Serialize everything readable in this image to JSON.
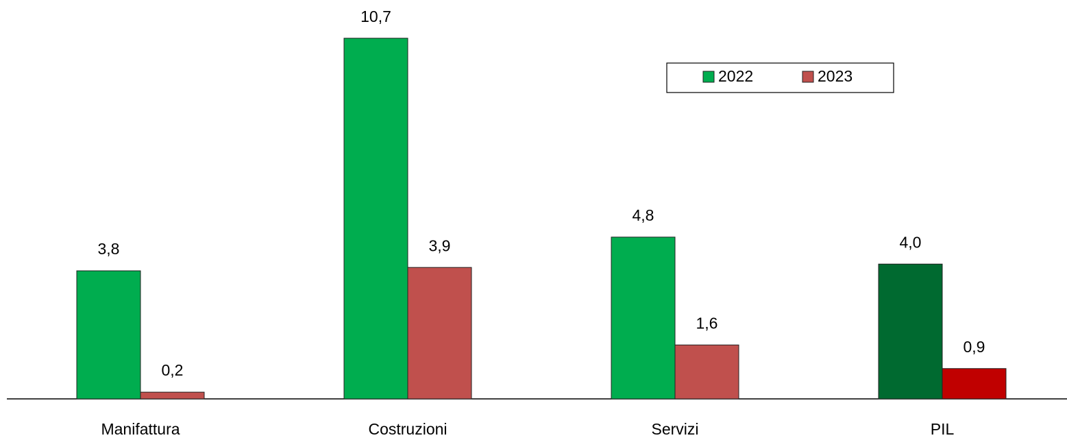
{
  "chart_data": {
    "type": "bar",
    "categories": [
      "Manifattura",
      "Costruzioni",
      "Servizi",
      "PIL"
    ],
    "series": [
      {
        "name": "2022",
        "color": "#00ad4f",
        "colors": [
          "#00ad4f",
          "#00ad4f",
          "#00ad4f",
          "#006a30"
        ],
        "values": [
          3.8,
          10.7,
          4.8,
          4.0
        ],
        "value_labels": [
          "3,8",
          "10,7",
          "4,8",
          "4,0"
        ]
      },
      {
        "name": "2023",
        "color": "#c0504d",
        "colors": [
          "#c0504d",
          "#c0504d",
          "#c0504d",
          "#c00000"
        ],
        "values": [
          0.2,
          3.9,
          1.6,
          0.9
        ],
        "value_labels": [
          "0,2",
          "3,9",
          "1,6",
          "0,9"
        ]
      }
    ],
    "ylim": [
      0,
      11
    ],
    "legend": "top-right"
  }
}
